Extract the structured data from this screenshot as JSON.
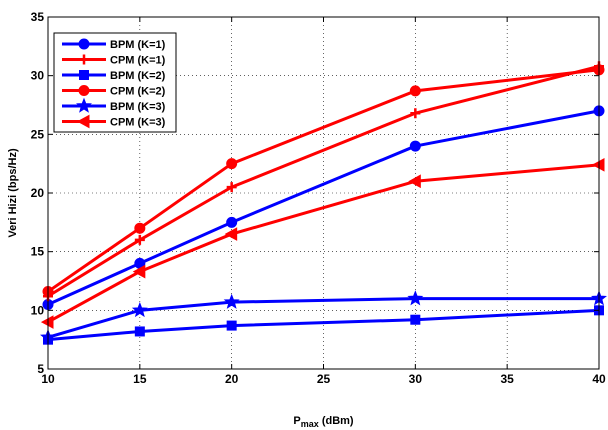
{
  "chart_data": {
    "type": "line",
    "title": "",
    "xlabel_main": "P",
    "xlabel_sub": "max",
    "xlabel_unit": " (dBm)",
    "ylabel": "Veri Hizi (bps/Hz)",
    "xlim": [
      10,
      40
    ],
    "ylim": [
      5,
      35
    ],
    "xticks": [
      10,
      15,
      20,
      25,
      30,
      35,
      40
    ],
    "yticks": [
      5,
      10,
      15,
      20,
      25,
      30,
      35
    ],
    "grid": true,
    "grid_style": "dotted",
    "legend_position": "top-left",
    "series": [
      {
        "name": "BPM (K=1)",
        "color": "#0000ff",
        "marker": "circle",
        "x": [
          10,
          15,
          20,
          30,
          40
        ],
        "y": [
          10.5,
          14,
          17.5,
          24,
          27
        ]
      },
      {
        "name": "CPM (K=1)",
        "color": "#ff0000",
        "marker": "plus",
        "x": [
          10,
          15,
          20,
          30,
          40
        ],
        "y": [
          11.2,
          16,
          20.5,
          26.8,
          30.8
        ]
      },
      {
        "name": "BPM (K=2)",
        "color": "#0000ff",
        "marker": "square",
        "x": [
          10,
          15,
          20,
          30,
          40
        ],
        "y": [
          7.5,
          8.2,
          8.7,
          9.2,
          10
        ]
      },
      {
        "name": "CPM (K=2)",
        "color": "#ff0000",
        "marker": "circle",
        "x": [
          10,
          15,
          20,
          30,
          40
        ],
        "y": [
          11.6,
          17,
          22.5,
          28.7,
          30.5
        ]
      },
      {
        "name": "BPM (K=3)",
        "color": "#0000ff",
        "marker": "star",
        "x": [
          10,
          15,
          20,
          30,
          40
        ],
        "y": [
          7.7,
          10,
          10.7,
          11,
          11
        ]
      },
      {
        "name": "CPM (K=3)",
        "color": "#ff0000",
        "marker": "triangle-left",
        "x": [
          10,
          15,
          20,
          30,
          40
        ],
        "y": [
          9,
          13.3,
          16.5,
          21,
          22.4
        ]
      }
    ]
  }
}
